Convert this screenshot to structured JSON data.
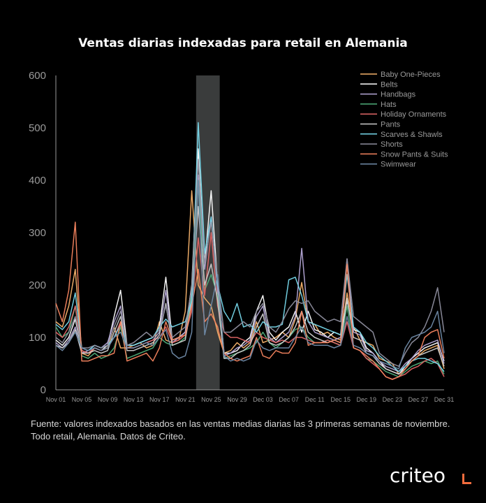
{
  "title": "Ventas diarias indexadas para retail en Alemania",
  "footnote": "Fuente: valores indexados basados en las ventas medias diarias las 3 primeras semanas de noviembre. Todo retail, Alemania. Datos de Criteo.",
  "logo": "criteo",
  "chart_data": {
    "type": "line",
    "title": "Ventas diarias indexadas para retail en Alemania",
    "xlabel": "",
    "ylabel": "",
    "ylim": [
      0,
      600
    ],
    "yticks": [
      0,
      100,
      200,
      300,
      400,
      500,
      600
    ],
    "grid": false,
    "legend_position": "top-right",
    "highlight_range": [
      "Nov 23",
      "Nov 26"
    ],
    "highlight_color": "#3a3c3c",
    "x": [
      "Nov 01",
      "Nov 02",
      "Nov 03",
      "Nov 04",
      "Nov 05",
      "Nov 06",
      "Nov 07",
      "Nov 08",
      "Nov 09",
      "Nov 10",
      "Nov 11",
      "Nov 12",
      "Nov 13",
      "Nov 14",
      "Nov 15",
      "Nov 16",
      "Nov 17",
      "Nov 18",
      "Nov 19",
      "Nov 20",
      "Nov 21",
      "Nov 22",
      "Nov 23",
      "Nov 24",
      "Nov 25",
      "Nov 26",
      "Nov 27",
      "Nov 28",
      "Nov 29",
      "Nov 30",
      "Dec 01",
      "Dec 02",
      "Dec 03",
      "Dec 04",
      "Dec 05",
      "Dec 06",
      "Dec 07",
      "Dec 08",
      "Dec 09",
      "Dec 10",
      "Dec 11",
      "Dec 12",
      "Dec 13",
      "Dec 14",
      "Dec 15",
      "Dec 16",
      "Dec 17",
      "Dec 18",
      "Dec 19",
      "Dec 20",
      "Dec 21",
      "Dec 22",
      "Dec 23",
      "Dec 24",
      "Dec 25",
      "Dec 26",
      "Dec 27",
      "Dec 28",
      "Dec 29",
      "Dec 30",
      "Dec 31"
    ],
    "xtick_labels": [
      "Nov 01",
      "Nov 05",
      "Nov 09",
      "Nov 13",
      "Nov 17",
      "Nov 21",
      "Nov 25",
      "Nov 29",
      "Dec 03",
      "Dec 07",
      "Dec 11",
      "Dec 15",
      "Dec 19",
      "Dec 23",
      "Dec 27",
      "Dec 31"
    ],
    "series": [
      {
        "name": "Baby One-Pieces",
        "color": "#f6b26b",
        "values": [
          130,
          120,
          160,
          230,
          70,
          65,
          80,
          75,
          80,
          120,
          80,
          80,
          85,
          90,
          80,
          85,
          130,
          95,
          90,
          95,
          150,
          380,
          200,
          175,
          160,
          110,
          70,
          75,
          90,
          80,
          90,
          130,
          90,
          95,
          100,
          110,
          100,
          135,
          205,
          130,
          125,
          105,
          110,
          100,
          95,
          185,
          120,
          95,
          90,
          85,
          60,
          55,
          50,
          30,
          40,
          55,
          65,
          75,
          80,
          85,
          40
        ]
      },
      {
        "name": "Belts",
        "color": "#ffffff",
        "values": [
          95,
          85,
          100,
          135,
          75,
          70,
          80,
          75,
          85,
          140,
          190,
          85,
          85,
          90,
          95,
          100,
          120,
          215,
          95,
          100,
          110,
          200,
          460,
          240,
          380,
          200,
          70,
          70,
          75,
          90,
          100,
          150,
          180,
          110,
          95,
          110,
          120,
          150,
          110,
          150,
          115,
          110,
          100,
          110,
          105,
          170,
          115,
          110,
          80,
          70,
          55,
          40,
          35,
          30,
          45,
          60,
          70,
          80,
          85,
          90,
          55
        ]
      },
      {
        "name": "Handbags",
        "color": "#b4a7d6",
        "values": [
          90,
          80,
          95,
          120,
          70,
          75,
          85,
          80,
          90,
          130,
          160,
          80,
          80,
          85,
          90,
          95,
          110,
          190,
          90,
          100,
          110,
          190,
          410,
          230,
          330,
          190,
          65,
          70,
          80,
          85,
          95,
          140,
          160,
          100,
          90,
          100,
          110,
          140,
          270,
          130,
          110,
          105,
          100,
          95,
          100,
          250,
          110,
          105,
          75,
          70,
          55,
          45,
          40,
          35,
          50,
          60,
          75,
          85,
          90,
          95,
          50
        ]
      },
      {
        "name": "Hats",
        "color": "#4fae7a",
        "values": [
          120,
          100,
          110,
          160,
          65,
          60,
          70,
          60,
          65,
          80,
          120,
          60,
          65,
          70,
          75,
          80,
          100,
          90,
          85,
          90,
          100,
          180,
          400,
          190,
          220,
          180,
          60,
          65,
          70,
          75,
          80,
          90,
          110,
          90,
          80,
          90,
          100,
          115,
          120,
          100,
          90,
          90,
          95,
          90,
          85,
          160,
          80,
          75,
          60,
          55,
          45,
          35,
          30,
          25,
          35,
          45,
          50,
          55,
          50,
          55,
          30
        ]
      },
      {
        "name": "Holiday Ornaments",
        "color": "#e06666",
        "values": [
          110,
          100,
          120,
          160,
          75,
          70,
          80,
          75,
          80,
          100,
          130,
          80,
          80,
          85,
          90,
          95,
          100,
          120,
          90,
          95,
          105,
          150,
          290,
          180,
          300,
          160,
          110,
          100,
          100,
          95,
          90,
          110,
          100,
          95,
          90,
          95,
          90,
          100,
          100,
          95,
          90,
          90,
          95,
          90,
          85,
          130,
          80,
          75,
          60,
          50,
          40,
          25,
          20,
          25,
          30,
          40,
          45,
          55,
          60,
          50,
          25
        ]
      },
      {
        "name": "Pants",
        "color": "#cccccc",
        "values": [
          85,
          80,
          90,
          115,
          70,
          70,
          75,
          70,
          75,
          110,
          140,
          75,
          75,
          80,
          85,
          90,
          105,
          165,
          85,
          90,
          95,
          170,
          350,
          200,
          240,
          170,
          60,
          60,
          70,
          75,
          85,
          120,
          145,
          90,
          85,
          90,
          100,
          120,
          150,
          110,
          100,
          95,
          90,
          95,
          90,
          175,
          100,
          95,
          70,
          65,
          50,
          40,
          35,
          30,
          40,
          55,
          65,
          70,
          75,
          80,
          45
        ]
      },
      {
        "name": "Scarves & Shawls",
        "color": "#76d7ea",
        "values": [
          125,
          115,
          130,
          185,
          80,
          75,
          85,
          80,
          85,
          100,
          125,
          85,
          85,
          90,
          95,
          100,
          120,
          135,
          120,
          125,
          130,
          170,
          510,
          260,
          330,
          200,
          150,
          130,
          165,
          120,
          125,
          110,
          130,
          120,
          120,
          125,
          210,
          215,
          180,
          130,
          125,
          120,
          115,
          110,
          105,
          220,
          120,
          110,
          90,
          80,
          65,
          55,
          45,
          35,
          45,
          55,
          60,
          60,
          55,
          50,
          35
        ]
      },
      {
        "name": "Shorts",
        "color": "#8e8e9e",
        "values": [
          100,
          90,
          110,
          140,
          80,
          80,
          85,
          80,
          85,
          120,
          150,
          85,
          90,
          100,
          110,
          100,
          115,
          160,
          100,
          110,
          120,
          195,
          440,
          240,
          320,
          210,
          110,
          110,
          120,
          130,
          120,
          150,
          165,
          120,
          110,
          130,
          155,
          170,
          165,
          170,
          150,
          140,
          130,
          135,
          130,
          250,
          140,
          130,
          120,
          110,
          70,
          60,
          50,
          45,
          70,
          90,
          100,
          120,
          150,
          195,
          110
        ]
      },
      {
        "name": "Snow Pants & Suits",
        "color": "#f4845f",
        "values": [
          165,
          130,
          190,
          320,
          55,
          55,
          60,
          65,
          65,
          70,
          130,
          55,
          60,
          65,
          70,
          55,
          80,
          130,
          95,
          100,
          105,
          160,
          230,
          130,
          145,
          120,
          70,
          60,
          55,
          60,
          65,
          100,
          65,
          60,
          75,
          70,
          70,
          90,
          150,
          85,
          90,
          90,
          90,
          95,
          90,
          240,
          80,
          75,
          65,
          55,
          40,
          25,
          20,
          25,
          40,
          55,
          65,
          100,
          110,
          115,
          60
        ]
      },
      {
        "name": "Swimwear",
        "color": "#6f8aa8",
        "values": [
          85,
          75,
          90,
          110,
          80,
          75,
          80,
          75,
          80,
          100,
          110,
          80,
          80,
          85,
          90,
          85,
          100,
          115,
          70,
          60,
          65,
          110,
          400,
          105,
          160,
          220,
          65,
          55,
          60,
          55,
          60,
          95,
          80,
          75,
          80,
          80,
          80,
          100,
          120,
          90,
          85,
          85,
          85,
          80,
          85,
          140,
          85,
          80,
          70,
          65,
          55,
          50,
          45,
          40,
          80,
          100,
          105,
          110,
          120,
          150,
          70
        ]
      }
    ]
  }
}
